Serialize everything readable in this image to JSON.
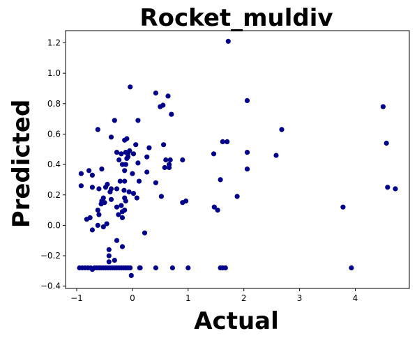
{
  "chart_data": {
    "type": "scatter",
    "title": "Rocket_muldiv",
    "xlabel": "Actual",
    "ylabel": "Predicted",
    "xlim": [
      -1.2,
      4.97
    ],
    "ylim": [
      -0.415,
      1.28
    ],
    "xticks": [
      -1,
      0,
      1,
      2,
      3,
      4
    ],
    "yticks": [
      -0.4,
      -0.2,
      0.0,
      0.2,
      0.4,
      0.6,
      0.8,
      1.0,
      1.2
    ],
    "ytick_labels": [
      "−0.4",
      "−0.2",
      "0.0",
      "0.2",
      "0.4",
      "0.6",
      "0.8",
      "1.0",
      "1.2"
    ],
    "xtick_labels": [
      "−1",
      "0",
      "1",
      "2",
      "3",
      "4"
    ],
    "grid": false,
    "marker_color": "#00008b",
    "points": [
      [
        -0.95,
        -0.28
      ],
      [
        -0.9,
        -0.28
      ],
      [
        -0.85,
        -0.28
      ],
      [
        -0.8,
        -0.28
      ],
      [
        -0.75,
        -0.28
      ],
      [
        -0.72,
        -0.29
      ],
      [
        -0.68,
        -0.28
      ],
      [
        -0.64,
        -0.28
      ],
      [
        -0.6,
        -0.28
      ],
      [
        -0.56,
        -0.28
      ],
      [
        -0.52,
        -0.28
      ],
      [
        -0.48,
        -0.28
      ],
      [
        -0.44,
        -0.28
      ],
      [
        -0.4,
        -0.28
      ],
      [
        -0.36,
        -0.28
      ],
      [
        -0.32,
        -0.28
      ],
      [
        -0.28,
        -0.28
      ],
      [
        -0.24,
        -0.28
      ],
      [
        -0.2,
        -0.28
      ],
      [
        -0.16,
        -0.28
      ],
      [
        -0.12,
        -0.28
      ],
      [
        -0.08,
        -0.28
      ],
      [
        -0.04,
        -0.28
      ],
      [
        0.13,
        -0.28
      ],
      [
        0.14,
        -0.28
      ],
      [
        0.42,
        -0.28
      ],
      [
        0.72,
        -0.28
      ],
      [
        1.0,
        -0.28
      ],
      [
        1.58,
        -0.28
      ],
      [
        1.62,
        -0.28
      ],
      [
        1.67,
        -0.28
      ],
      [
        3.93,
        -0.28
      ],
      [
        -0.02,
        -0.33
      ],
      [
        -0.42,
        -0.16
      ],
      [
        -0.42,
        -0.2
      ],
      [
        -0.42,
        -0.24
      ],
      [
        -0.32,
        -0.23
      ],
      [
        -0.28,
        -0.1
      ],
      [
        -0.18,
        -0.14
      ],
      [
        0.22,
        -0.05
      ],
      [
        -0.72,
        -0.03
      ],
      [
        -0.62,
        0.0
      ],
      [
        -0.52,
        -0.01
      ],
      [
        -0.46,
        0.01
      ],
      [
        -0.82,
        0.04
      ],
      [
        -0.76,
        0.05
      ],
      [
        -0.28,
        0.12
      ],
      [
        -0.25,
        0.07
      ],
      [
        -0.18,
        0.05
      ],
      [
        -0.18,
        0.09
      ],
      [
        -0.2,
        0.13
      ],
      [
        -0.14,
        0.1
      ],
      [
        -0.12,
        0.16
      ],
      [
        -0.14,
        0.18
      ],
      [
        -0.55,
        0.16
      ],
      [
        -0.52,
        0.18
      ],
      [
        -0.5,
        0.15
      ],
      [
        -0.56,
        0.14
      ],
      [
        -0.6,
        0.07
      ],
      [
        -0.62,
        0.1
      ],
      [
        -0.4,
        0.22
      ],
      [
        -0.28,
        0.24
      ],
      [
        -0.22,
        0.29
      ],
      [
        -0.14,
        0.29
      ],
      [
        -0.15,
        0.23
      ],
      [
        -0.06,
        0.22
      ],
      [
        0.02,
        0.21
      ],
      [
        0.08,
        0.18
      ],
      [
        0.12,
        0.29
      ],
      [
        -0.92,
        0.26
      ],
      [
        -0.92,
        0.34
      ],
      [
        -0.78,
        0.36
      ],
      [
        -0.72,
        0.33
      ],
      [
        -0.72,
        0.25
      ],
      [
        -0.6,
        0.24
      ],
      [
        -0.55,
        0.37
      ],
      [
        -0.48,
        0.25
      ],
      [
        -0.45,
        0.27
      ],
      [
        -0.38,
        0.24
      ],
      [
        -0.38,
        0.17
      ],
      [
        -0.28,
        0.48
      ],
      [
        -0.24,
        0.43
      ],
      [
        -0.18,
        0.4
      ],
      [
        -0.14,
        0.36
      ],
      [
        -0.12,
        0.4
      ],
      [
        -0.12,
        0.48
      ],
      [
        -0.1,
        0.44
      ],
      [
        -0.08,
        0.47
      ],
      [
        -0.05,
        0.49
      ],
      [
        -0.2,
        0.47
      ],
      [
        -0.14,
        0.56
      ],
      [
        -0.1,
        0.57
      ],
      [
        -0.08,
        0.45
      ],
      [
        0.0,
        0.34
      ],
      [
        0.02,
        0.47
      ],
      [
        0.06,
        0.53
      ],
      [
        0.1,
        0.41
      ],
      [
        -0.62,
        0.63
      ],
      [
        -0.38,
        0.58
      ],
      [
        -0.32,
        0.69
      ],
      [
        -0.04,
        0.91
      ],
      [
        0.1,
        0.69
      ],
      [
        0.26,
        0.35
      ],
      [
        0.26,
        0.45
      ],
      [
        0.3,
        0.51
      ],
      [
        0.42,
        0.28
      ],
      [
        0.42,
        0.87
      ],
      [
        0.5,
        0.78
      ],
      [
        0.55,
        0.79
      ],
      [
        0.52,
        0.19
      ],
      [
        0.56,
        0.53
      ],
      [
        0.58,
        0.38
      ],
      [
        0.6,
        0.43
      ],
      [
        0.64,
        0.85
      ],
      [
        0.66,
        0.38
      ],
      [
        0.66,
        0.4
      ],
      [
        0.68,
        0.43
      ],
      [
        0.7,
        0.73
      ],
      [
        0.9,
        0.15
      ],
      [
        0.9,
        0.43
      ],
      [
        0.96,
        0.16
      ],
      [
        1.46,
        0.47
      ],
      [
        1.47,
        0.12
      ],
      [
        1.53,
        0.1
      ],
      [
        1.58,
        0.3
      ],
      [
        1.62,
        0.55
      ],
      [
        1.7,
        0.55
      ],
      [
        1.72,
        1.21
      ],
      [
        1.88,
        0.19
      ],
      [
        2.06,
        0.82
      ],
      [
        2.06,
        0.48
      ],
      [
        2.06,
        0.37
      ],
      [
        2.58,
        0.46
      ],
      [
        2.68,
        0.63
      ],
      [
        3.78,
        0.12
      ],
      [
        4.5,
        0.78
      ],
      [
        4.56,
        0.54
      ],
      [
        4.58,
        0.25
      ],
      [
        4.72,
        0.24
      ]
    ]
  }
}
